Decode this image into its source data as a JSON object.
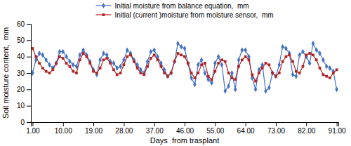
{
  "chart_data": {
    "type": "line",
    "x_label": "Days  from trasplant",
    "y_label": "Soil moisture content,  mm",
    "x": [
      1,
      2,
      3,
      4,
      5,
      6,
      7,
      8,
      9,
      10,
      11,
      12,
      13,
      14,
      15,
      16,
      17,
      18,
      19,
      20,
      21,
      22,
      23,
      24,
      25,
      26,
      27,
      28,
      29,
      30,
      31,
      32,
      33,
      34,
      35,
      36,
      37,
      38,
      39,
      40,
      41,
      42,
      43,
      44,
      45,
      46,
      47,
      48,
      49,
      50,
      51,
      52,
      53,
      54,
      55,
      56,
      57,
      58,
      59,
      60,
      61,
      62,
      63,
      64,
      65,
      66,
      67,
      68,
      69,
      70,
      71,
      72,
      73,
      74,
      75,
      76,
      77,
      78,
      79,
      80,
      81,
      82,
      83,
      84,
      85,
      86,
      87,
      88,
      89,
      90,
      91
    ],
    "series": [
      {
        "name": "Initial moisture from balance equation,  mm",
        "color": "#4472C4",
        "marker": "diamond",
        "values": [
          30,
          38,
          42,
          41,
          38,
          35,
          33,
          36,
          43,
          43,
          40,
          37,
          35,
          34,
          41,
          44,
          41,
          37,
          32,
          29,
          38,
          42,
          41,
          37,
          36,
          33,
          34,
          38,
          44,
          42,
          38,
          35,
          32,
          30,
          37,
          43,
          44,
          40,
          36,
          32,
          28,
          30,
          37,
          48,
          46,
          45,
          36,
          27,
          23,
          35,
          38,
          30,
          26,
          24,
          36,
          40,
          35,
          19,
          22,
          30,
          20,
          38,
          44,
          44,
          40,
          27,
          20,
          32,
          35,
          19,
          21,
          30,
          28,
          35,
          46,
          45,
          42,
          29,
          28,
          41,
          43,
          40,
          36,
          48,
          44,
          42,
          38,
          34,
          33,
          31,
          20
        ]
      },
      {
        "name": "Initial (current )moisture from moisture sensor,  mm",
        "color": "#B22222",
        "marker": "square",
        "values": [
          45,
          40,
          36,
          33,
          31,
          30,
          32,
          36,
          40,
          39,
          36,
          34,
          31,
          30,
          38,
          42,
          40,
          36,
          31,
          30,
          33,
          38,
          39,
          36,
          32,
          29,
          30,
          35,
          40,
          41,
          37,
          33,
          30,
          29,
          34,
          39,
          41,
          38,
          34,
          30,
          28,
          30,
          37,
          42,
          41,
          40,
          36,
          30,
          27,
          30,
          35,
          36,
          28,
          26,
          31,
          36,
          38,
          37,
          30,
          27,
          26,
          34,
          38,
          40,
          38,
          29,
          25,
          30,
          33,
          36,
          35,
          30,
          28,
          30,
          37,
          40,
          41,
          37,
          31,
          30,
          34,
          41,
          42,
          41,
          38,
          33,
          29,
          28,
          27,
          30,
          32
        ]
      }
    ],
    "xlim": [
      0.5,
      91.5
    ],
    "ylim": [
      0,
      60
    ],
    "xticks": [
      {
        "value": 1,
        "label": "1.00"
      },
      {
        "value": 10,
        "label": "10.00"
      },
      {
        "value": 19,
        "label": "19.00"
      },
      {
        "value": 28,
        "label": "28.00"
      },
      {
        "value": 37,
        "label": "37.00"
      },
      {
        "value": 46,
        "label": "46.00"
      },
      {
        "value": 55,
        "label": "55.00"
      },
      {
        "value": 64,
        "label": "64.00"
      },
      {
        "value": 73,
        "label": "73.00"
      },
      {
        "value": 82,
        "label": "82.00"
      },
      {
        "value": 91,
        "label": "91.00"
      }
    ],
    "yticks": [
      0,
      10,
      20,
      30,
      40,
      50,
      60
    ],
    "grid": false,
    "legend": "top"
  }
}
